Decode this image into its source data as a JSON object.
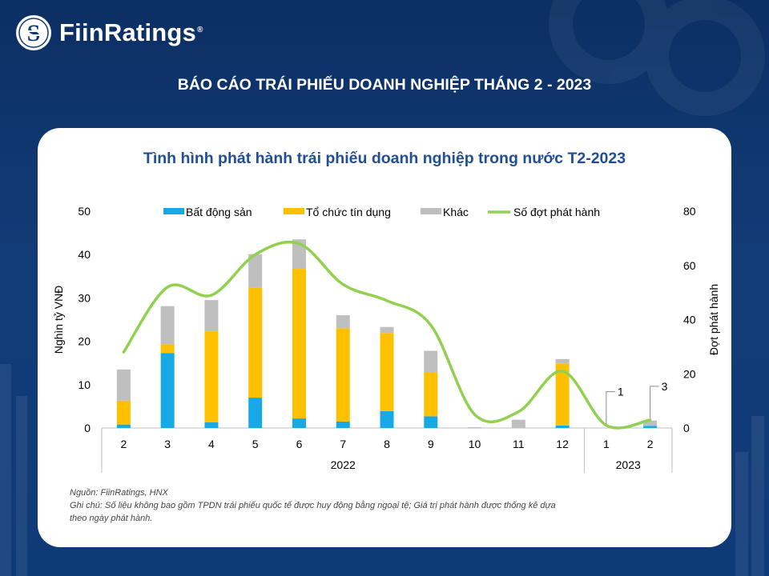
{
  "brand": {
    "name": "FiinRatings",
    "registered": "®"
  },
  "report_title": "BÁO CÁO TRÁI PHIẾU DOANH NGHIỆP THÁNG 2 - 2023",
  "colors": {
    "real_estate": "#17a8e6",
    "credit_institutions": "#ffc000",
    "other": "#bfbfbf",
    "issues_line": "#92d050",
    "title": "#1f4f96"
  },
  "chart_data": {
    "type": "bar",
    "stacked": true,
    "title": "Tình hình phát hành trái phiếu doanh nghiệp trong nước T2-2023",
    "ylabel": "Nghìn tỷ VNĐ",
    "y2label": "Đợt phát hành",
    "ylim": [
      0,
      50
    ],
    "y2lim": [
      0,
      80
    ],
    "yticks": [
      "0",
      "10",
      "20",
      "30",
      "40",
      "50"
    ],
    "y2ticks": [
      "0",
      "20",
      "40",
      "60",
      "80"
    ],
    "categories": [
      "2",
      "3",
      "4",
      "5",
      "6",
      "7",
      "8",
      "9",
      "10",
      "11",
      "12",
      "1",
      "2"
    ],
    "groups": [
      {
        "label": "2022",
        "span": 11
      },
      {
        "label": "2023",
        "span": 2
      }
    ],
    "legend_position": "top",
    "series": [
      {
        "name": "Bất động sản",
        "type": "bar",
        "values": [
          0.8,
          17.3,
          1.3,
          7.0,
          2.2,
          1.5,
          3.9,
          2.7,
          0.0,
          0.0,
          0.6,
          0.0,
          0.5
        ]
      },
      {
        "name": "Tổ chức tín dụng",
        "type": "bar",
        "values": [
          5.5,
          2.0,
          21.0,
          25.3,
          34.5,
          21.5,
          18.0,
          10.2,
          0.0,
          0.0,
          14.3,
          0.0,
          0.0
        ]
      },
      {
        "name": "Khác",
        "type": "bar",
        "values": [
          7.2,
          8.8,
          7.2,
          7.8,
          6.8,
          3.0,
          1.4,
          4.9,
          0.2,
          1.9,
          1.0,
          0.0,
          1.2
        ]
      },
      {
        "name": "Số đợt phát hành",
        "type": "line",
        "axis": "right",
        "values": [
          28,
          52,
          49,
          64,
          68,
          53,
          47,
          38,
          5,
          6,
          21,
          1,
          3
        ]
      }
    ],
    "data_labels": [
      {
        "series": "Số đợt phát hành",
        "index": 11,
        "text": "1"
      },
      {
        "series": "Số đợt phát hành",
        "index": 12,
        "text": "3"
      }
    ]
  },
  "footnote": {
    "source": "Nguồn: FiinRatings, HNX",
    "note_line1": "Ghi chú: Số liệu không bao gồm TPDN trái phiếu quốc tế được huy động bằng ngoại tệ; Giá trị phát hành được thống kê dựa",
    "note_line2": "theo ngày phát hành."
  }
}
